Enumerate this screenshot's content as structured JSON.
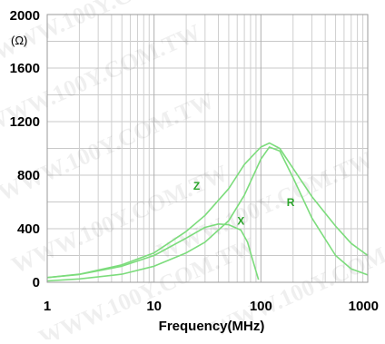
{
  "chart_data": {
    "type": "line",
    "title": "",
    "xlabel": "Frequency(MHz)",
    "ylabel_unit": "(Ω)",
    "x_scale": "log",
    "xlim": [
      1,
      1000
    ],
    "ylim": [
      0,
      2000
    ],
    "grid": true,
    "x_ticks": [
      {
        "value": 1,
        "label": "1"
      },
      {
        "value": 10,
        "label": "10"
      },
      {
        "value": 100,
        "label": "100"
      },
      {
        "value": 1000,
        "label": "1000"
      }
    ],
    "y_ticks": [
      {
        "value": 0,
        "label": "0"
      },
      {
        "value": 400,
        "label": "400"
      },
      {
        "value": 800,
        "label": "800"
      },
      {
        "value": 1200,
        "label": "1200"
      },
      {
        "value": 1600,
        "label": "1600"
      },
      {
        "value": 2000,
        "label": "2000"
      }
    ],
    "series": [
      {
        "name": "Z",
        "color": "#7cdc7c",
        "points": [
          [
            1,
            35
          ],
          [
            2,
            60
          ],
          [
            5,
            130
          ],
          [
            10,
            220
          ],
          [
            20,
            380
          ],
          [
            30,
            500
          ],
          [
            50,
            700
          ],
          [
            70,
            880
          ],
          [
            100,
            1010
          ],
          [
            120,
            1040
          ],
          [
            150,
            1000
          ],
          [
            200,
            850
          ],
          [
            300,
            640
          ],
          [
            500,
            420
          ],
          [
            700,
            290
          ],
          [
            1000,
            200
          ]
        ]
      },
      {
        "name": "R",
        "color": "#7cdc7c",
        "points": [
          [
            1,
            10
          ],
          [
            2,
            25
          ],
          [
            5,
            60
          ],
          [
            10,
            120
          ],
          [
            20,
            220
          ],
          [
            30,
            300
          ],
          [
            50,
            460
          ],
          [
            70,
            650
          ],
          [
            100,
            920
          ],
          [
            120,
            1010
          ],
          [
            150,
            980
          ],
          [
            200,
            780
          ],
          [
            300,
            480
          ],
          [
            500,
            200
          ],
          [
            700,
            100
          ],
          [
            1000,
            55
          ]
        ]
      },
      {
        "name": "X",
        "color": "#7cdc7c",
        "points": [
          [
            1,
            35
          ],
          [
            2,
            58
          ],
          [
            5,
            120
          ],
          [
            10,
            200
          ],
          [
            20,
            330
          ],
          [
            30,
            410
          ],
          [
            40,
            435
          ],
          [
            50,
            430
          ],
          [
            65,
            390
          ],
          [
            75,
            300
          ],
          [
            85,
            150
          ],
          [
            95,
            20
          ]
        ]
      }
    ],
    "annotations": [
      {
        "text": "Z",
        "x": 25,
        "y": 690
      },
      {
        "text": "X",
        "x": 65,
        "y": 430
      },
      {
        "text": "R",
        "x": 190,
        "y": 570
      }
    ],
    "watermark": "WWW.100Y.COM.TW"
  }
}
